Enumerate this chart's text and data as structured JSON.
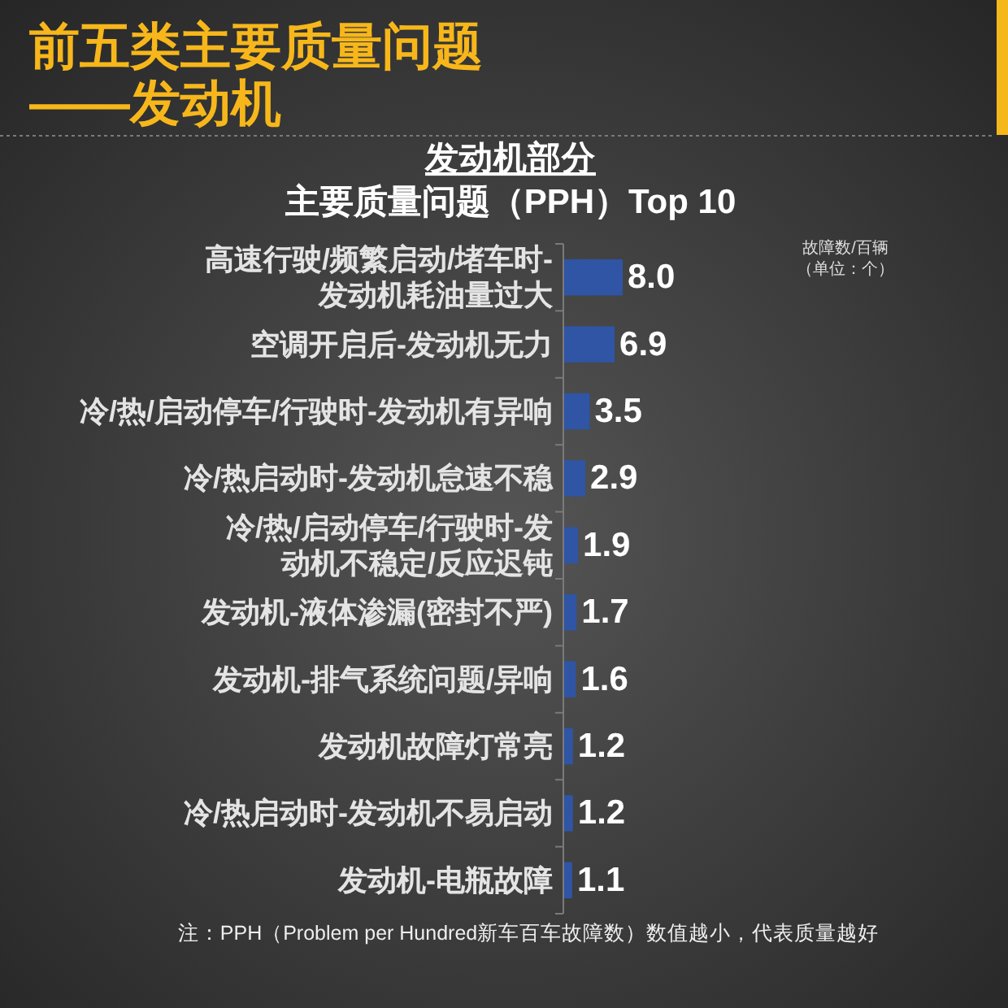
{
  "chart_data": {
    "type": "bar",
    "orientation": "horizontal",
    "title": "前五类主要质量问题——发动机",
    "subtitle": "发动机部分",
    "categories": [
      "高速行驶/频繁启动/堵车时-发动机耗油量过大",
      "空调开启后-发动机无力",
      "冷/热/启动停车/行驶时-发动机有异响",
      "冷/热启动时-发动机怠速不稳",
      "冷/热/启动停车/行驶时-发动机不稳定/反应迟钝",
      "发动机-液体渗漏(密封不严)",
      "发动机-排气系统问题/异响",
      "发动机故障灯常亮",
      "冷/热启动时-发动机不易启动",
      "发动机-电瓶故障"
    ],
    "values": [
      8.0,
      6.9,
      3.5,
      2.9,
      1.9,
      1.7,
      1.6,
      1.2,
      1.2,
      1.1
    ],
    "value_labels": [
      "8.0",
      "6.9",
      "3.5",
      "2.9",
      "1.9",
      "1.7",
      "1.6",
      "1.2",
      "1.2",
      "1.1"
    ],
    "color": "#2f55a4",
    "annotations": [
      "主要质量问题（PPH）Top 10",
      "故障数/百辆（单位：个）",
      "注：PPH（Problem per Hundred新车百车故障数）数值越小，代表质量越好"
    ]
  }
}
